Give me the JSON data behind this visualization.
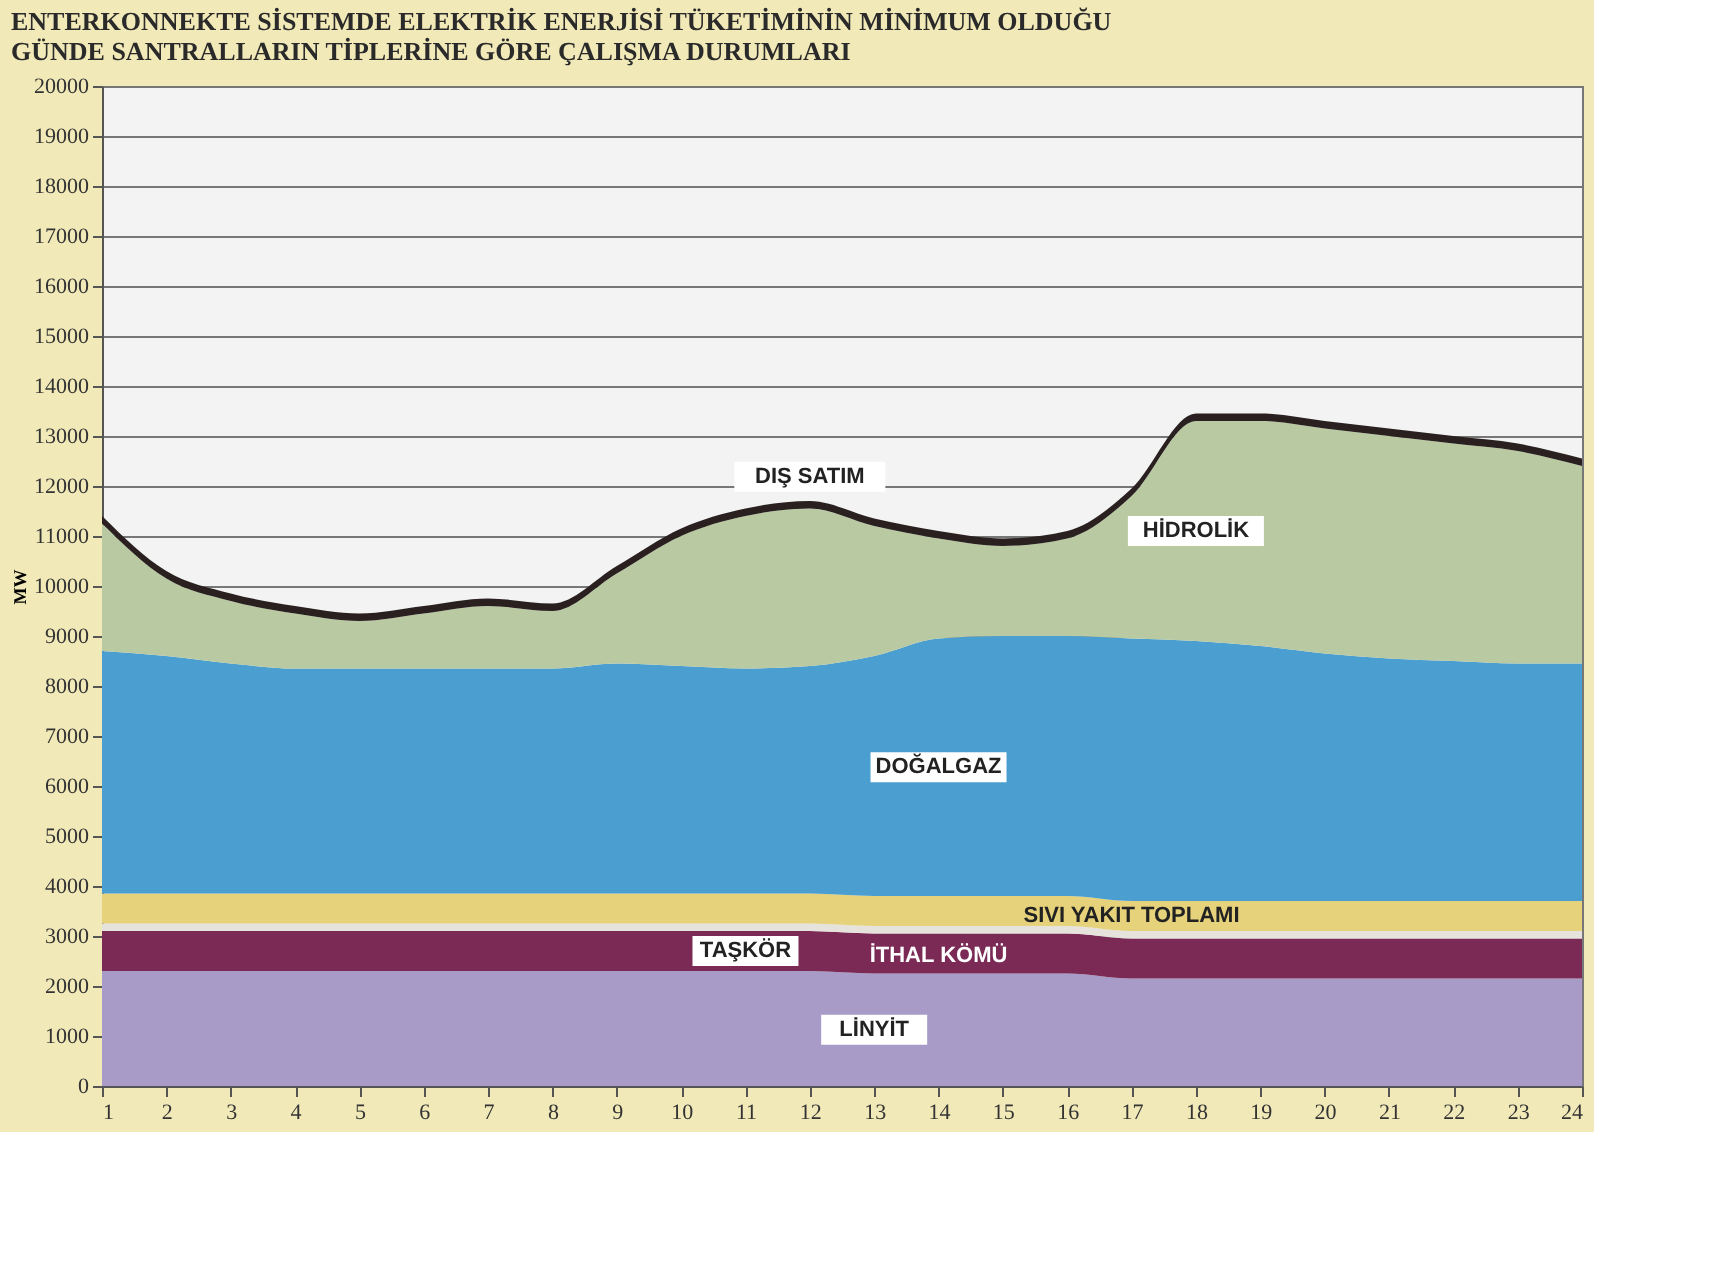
{
  "chart_data": {
    "type": "area",
    "stacked": true,
    "title": [
      "ENTERKONNEKTE SİSTEMDE ELEKTRİK ENERJİSİ TÜKETİMİNİN MİNİMUM OLDUĞU",
      "GÜNDE SANTRALLARIN TİPLERİNE GÖRE ÇALIŞMA DURUMLARI"
    ],
    "ylabel": "MW",
    "x": [
      1,
      2,
      3,
      4,
      5,
      6,
      7,
      8,
      9,
      10,
      11,
      12,
      13,
      14,
      15,
      16,
      17,
      18,
      19,
      20,
      21,
      22,
      23,
      24
    ],
    "xlim": [
      1,
      24
    ],
    "xticks": [
      1,
      2,
      3,
      4,
      5,
      6,
      7,
      8,
      9,
      10,
      11,
      12,
      13,
      14,
      15,
      16,
      17,
      18,
      19,
      20,
      21,
      22,
      23,
      24
    ],
    "ylim": [
      0,
      20000
    ],
    "yticks": [
      0,
      1000,
      2000,
      3000,
      4000,
      5000,
      6000,
      7000,
      8000,
      9000,
      10000,
      11000,
      12000,
      13000,
      14000,
      15000,
      16000,
      17000,
      18000,
      19000,
      20000
    ],
    "grid": "y",
    "series": [
      {
        "name": "LİNYİT",
        "color": "#a99bc8",
        "values": [
          2300,
          2300,
          2300,
          2300,
          2300,
          2300,
          2300,
          2300,
          2300,
          2300,
          2300,
          2300,
          2250,
          2250,
          2250,
          2250,
          2150,
          2150,
          2150,
          2150,
          2150,
          2150,
          2150,
          2150
        ]
      },
      {
        "name": "TAŞKÖR",
        "color": "#7a2a55",
        "values": [
          800,
          800,
          800,
          800,
          800,
          800,
          800,
          800,
          800,
          800,
          800,
          800,
          800,
          800,
          800,
          800,
          800,
          800,
          800,
          800,
          800,
          800,
          800,
          800
        ]
      },
      {
        "name": "İTHAL KÖMÜ",
        "color": "#e6e2dc",
        "values": [
          150,
          150,
          150,
          150,
          150,
          150,
          150,
          150,
          150,
          150,
          150,
          150,
          150,
          150,
          150,
          150,
          150,
          150,
          150,
          150,
          150,
          150,
          150,
          150
        ]
      },
      {
        "name": "SIVI YAKIT TOPLAMI",
        "color": "#e6d27a",
        "values": [
          600,
          600,
          600,
          600,
          600,
          600,
          600,
          600,
          600,
          600,
          600,
          600,
          600,
          600,
          600,
          600,
          600,
          600,
          600,
          600,
          600,
          600,
          600,
          600
        ]
      },
      {
        "name": "DOĞALGAZ",
        "color": "#4a9fd0",
        "values": [
          4850,
          4750,
          4600,
          4500,
          4500,
          4500,
          4500,
          4500,
          4600,
          4550,
          4500,
          4550,
          4800,
          5150,
          5200,
          5200,
          5250,
          5200,
          5100,
          4950,
          4850,
          4800,
          4750,
          4750
        ]
      },
      {
        "name": "HİDROLİK",
        "color": "#b9caa3",
        "values": [
          2550,
          1550,
          1250,
          1100,
          950,
          1100,
          1250,
          1150,
          1800,
          2600,
          3050,
          3150,
          2600,
          2000,
          1800,
          1950,
          2850,
          4400,
          4500,
          4500,
          4450,
          4350,
          4250,
          3950
        ]
      },
      {
        "name": "DIŞ SATIM",
        "color": "#2a2020",
        "values": [
          150,
          150,
          150,
          150,
          150,
          150,
          150,
          150,
          150,
          150,
          150,
          150,
          150,
          150,
          150,
          150,
          150,
          150,
          150,
          150,
          150,
          150,
          150,
          150
        ]
      }
    ]
  }
}
